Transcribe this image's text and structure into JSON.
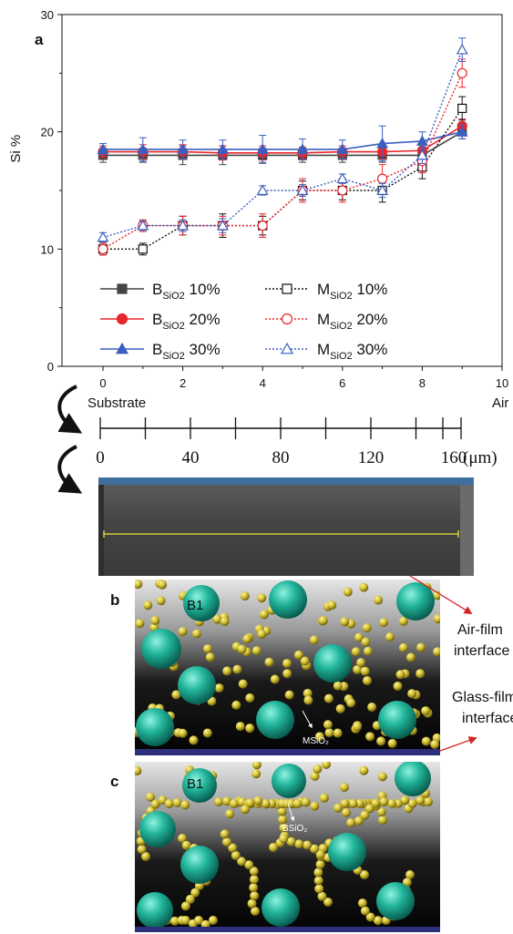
{
  "panel_labels": {
    "a": "a",
    "b": "b",
    "c": "c"
  },
  "chart_data": {
    "type": "line",
    "title": "",
    "xlabel": "",
    "ylabel": "Si %",
    "xlim": [
      0,
      10
    ],
    "ylim": [
      0,
      30
    ],
    "x_ticks": [
      0,
      2,
      4,
      6,
      8,
      10
    ],
    "y_ticks": [
      0,
      10,
      20,
      30
    ],
    "x": [
      0,
      1,
      2,
      3,
      4,
      5,
      6,
      7,
      8,
      9
    ],
    "grid": false,
    "legend_position": "lower-left",
    "series": [
      {
        "name_base": "B",
        "name_sub": "SiO2",
        "name_suffix": " 10%",
        "style": "solid",
        "marker": "square",
        "filled": true,
        "color": "#444444",
        "values": [
          18.0,
          18.0,
          18.0,
          18.0,
          18.0,
          18.0,
          18.0,
          18.0,
          18.0,
          20.0
        ],
        "errors": [
          0.6,
          0.6,
          0.8,
          0.8,
          0.6,
          0.6,
          0.6,
          0.6,
          0.6,
          0.6
        ]
      },
      {
        "name_base": "B",
        "name_sub": "SiO2",
        "name_suffix": " 20%",
        "style": "solid",
        "marker": "circle",
        "filled": true,
        "color": "#e8262b",
        "values": [
          18.3,
          18.3,
          18.3,
          18.2,
          18.2,
          18.2,
          18.3,
          18.3,
          18.4,
          20.5
        ],
        "errors": [
          0.5,
          0.6,
          0.6,
          0.6,
          0.6,
          0.5,
          0.5,
          0.6,
          0.7,
          0.6
        ]
      },
      {
        "name_base": "B",
        "name_sub": "SiO2",
        "name_suffix": " 30%",
        "style": "solid",
        "marker": "triangle",
        "filled": true,
        "color": "#3b5fc0",
        "values": [
          18.5,
          18.5,
          18.5,
          18.5,
          18.5,
          18.5,
          18.5,
          19.0,
          19.2,
          20.0
        ],
        "errors": [
          0.5,
          1.0,
          0.8,
          0.8,
          1.2,
          0.9,
          0.8,
          1.5,
          0.8,
          0.6
        ]
      },
      {
        "name_base": "M",
        "name_sub": "SiO2",
        "name_suffix": " 10%",
        "style": "dotted",
        "marker": "square",
        "filled": false,
        "color": "#111111",
        "values": [
          10.0,
          10.0,
          12.0,
          12.0,
          12.0,
          15.0,
          15.0,
          15.0,
          17.0,
          22.0
        ],
        "errors": [
          0.5,
          0.5,
          0.8,
          1.0,
          0.8,
          0.8,
          0.8,
          1.0,
          1.0,
          1.0
        ]
      },
      {
        "name_base": "M",
        "name_sub": "SiO2",
        "name_suffix": " 20%",
        "style": "dotted",
        "marker": "circle",
        "filled": false,
        "color": "#e8262b",
        "values": [
          10.0,
          12.0,
          12.0,
          12.0,
          12.0,
          15.0,
          15.0,
          16.0,
          17.5,
          25.0
        ],
        "errors": [
          0.5,
          0.5,
          0.8,
          0.8,
          1.0,
          1.0,
          1.0,
          1.2,
          1.0,
          1.2
        ]
      },
      {
        "name_base": "M",
        "name_sub": "SiO2",
        "name_suffix": " 30%",
        "style": "dotted",
        "marker": "triangle",
        "filled": false,
        "color": "#3b5fc0",
        "values": [
          11.0,
          12.0,
          12.0,
          12.0,
          15.0,
          15.0,
          16.0,
          15.0,
          18.0,
          27.0
        ],
        "errors": [
          0.4,
          0.4,
          0.5,
          0.6,
          0.4,
          0.5,
          0.4,
          0.6,
          0.7,
          1.0
        ]
      }
    ]
  },
  "substrate_label": "Substrate",
  "air_label": "Air",
  "micron_axis": {
    "ticks": [
      "0",
      "40",
      "80",
      "120",
      "160"
    ],
    "unit": "(μm)"
  },
  "schematic_b": {
    "particle_label": "B1",
    "annotation": "MSiO₂"
  },
  "schematic_c": {
    "particle_label": "B1",
    "annotation": "BSiO₂"
  },
  "side_labels": {
    "air_film_1": "Air-film",
    "air_film_2": "interface",
    "glass_film_1": "Glass-film",
    "glass_film_2": "interface"
  },
  "colors": {
    "teal": "#1aa58f",
    "yellow": "#d9c93a",
    "substrate_bar": "#2e2f7a",
    "sem_bar": "#3e6f9e",
    "arrow_red": "#d32323"
  }
}
